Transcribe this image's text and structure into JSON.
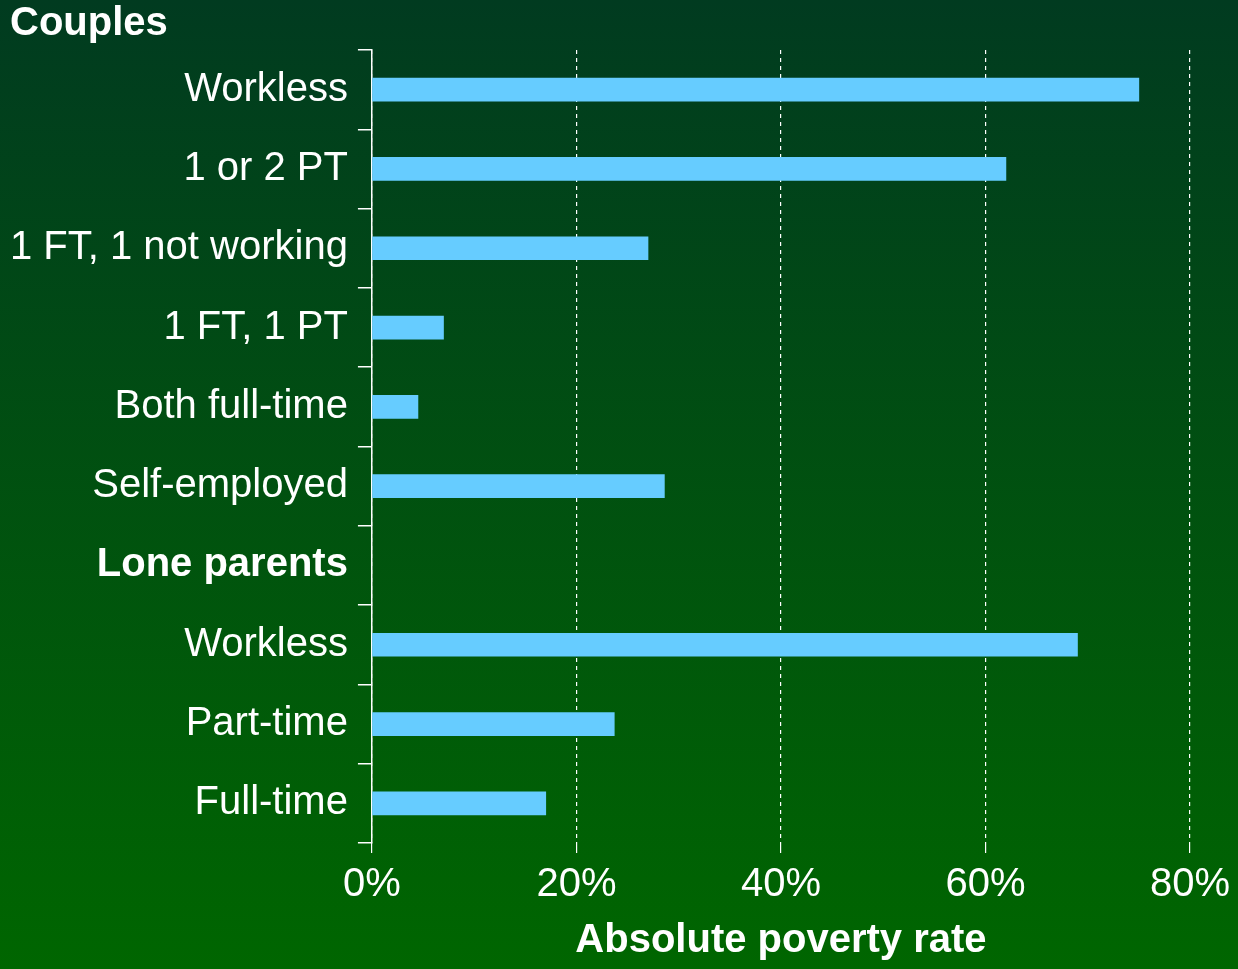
{
  "chart_data": {
    "type": "bar",
    "orientation": "horizontal",
    "xlabel": "Absolute poverty rate",
    "annotations": [
      "Couples"
    ],
    "categories": [
      "Workless",
      "1 or 2 PT",
      "1 FT, 1 not working",
      "1 FT, 1 PT",
      "Both full-time",
      "Self-employed",
      "Lone parents",
      "Workless",
      "Part-time",
      "Full-time"
    ],
    "values": [
      75,
      62,
      27,
      7,
      4.5,
      28.6,
      null,
      69,
      23.7,
      17
    ],
    "color": "#66ccff",
    "xlim": [
      0,
      80
    ],
    "xticks": [
      {
        "value": 0,
        "label": "0%"
      },
      {
        "value": 20,
        "label": "20%"
      },
      {
        "value": 40,
        "label": "40%"
      },
      {
        "value": 60,
        "label": "60%"
      },
      {
        "value": 80,
        "label": "80%"
      }
    ],
    "grid": "x",
    "legend": false
  }
}
